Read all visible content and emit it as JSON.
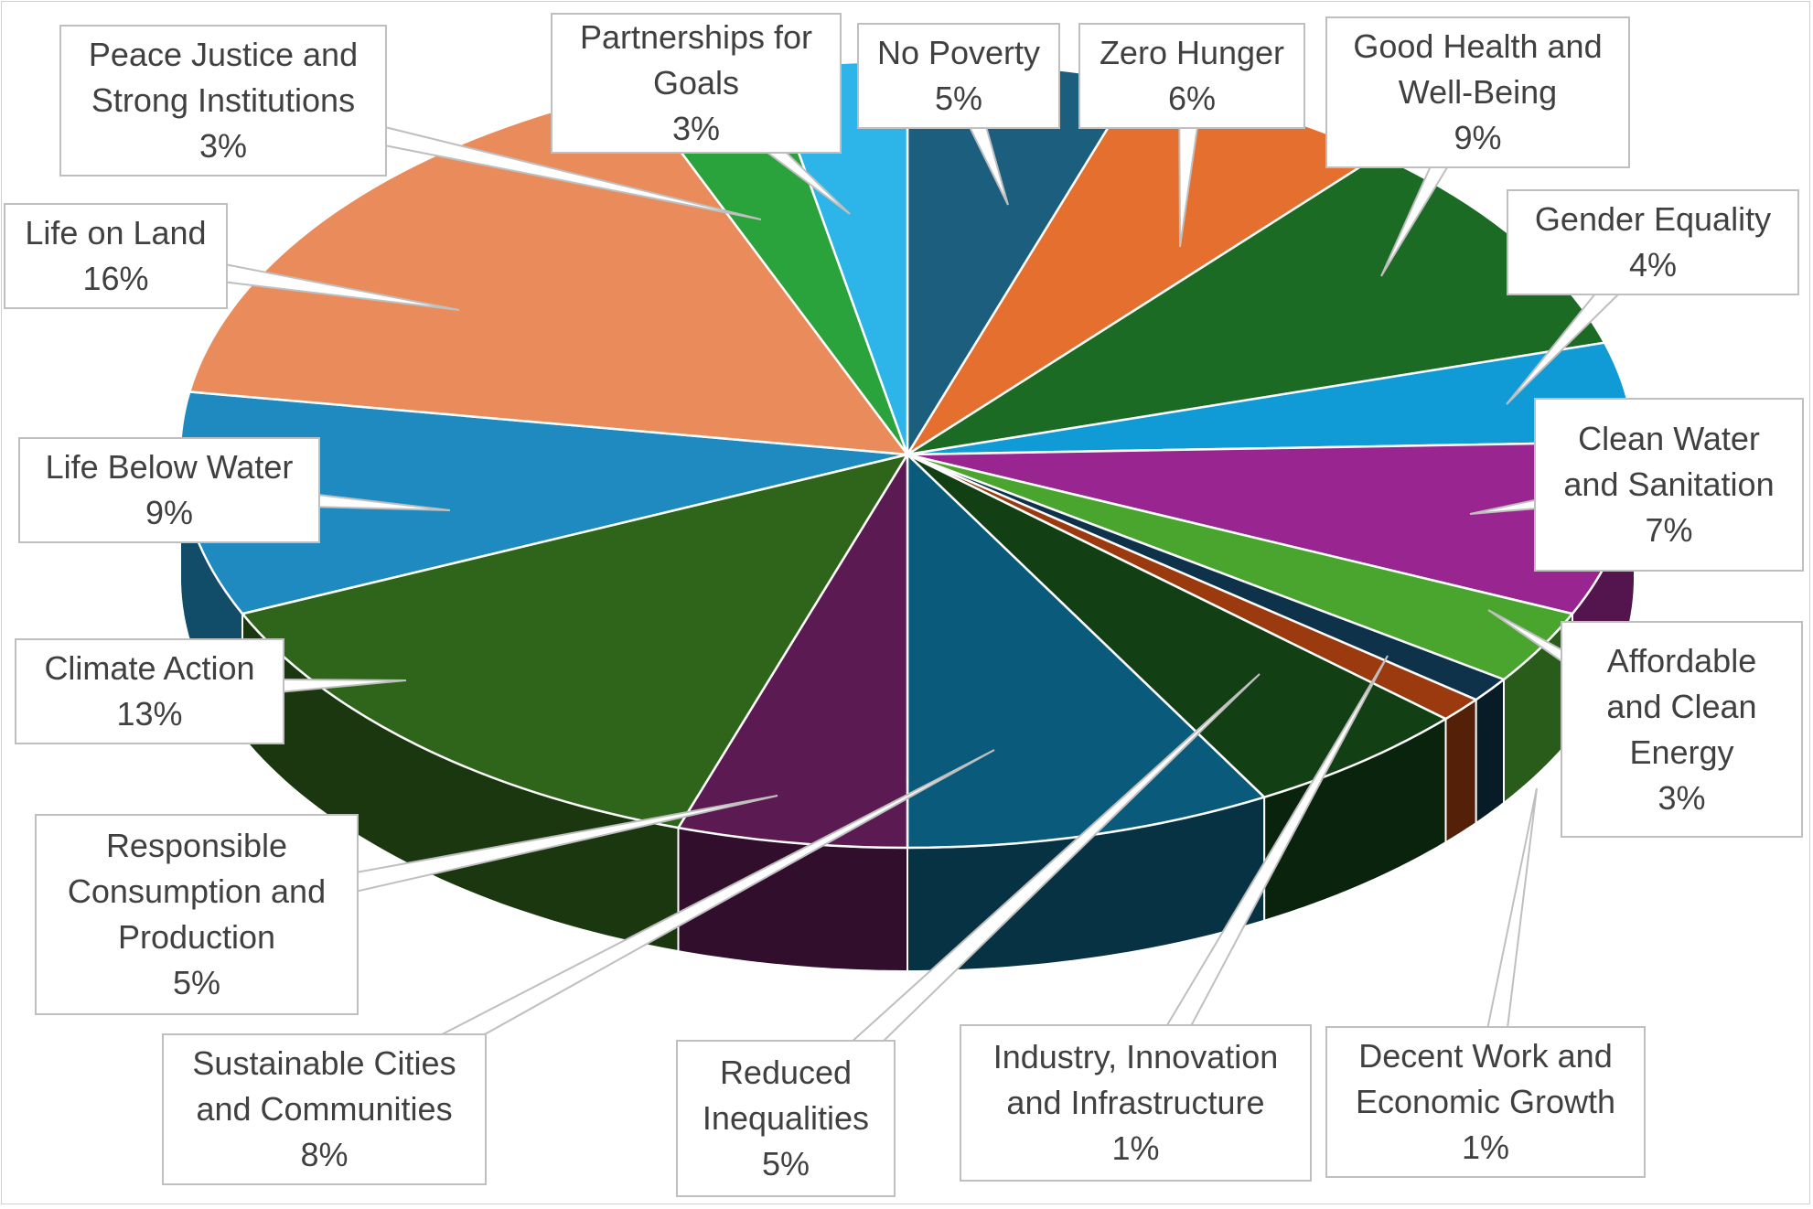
{
  "chart_data": {
    "type": "pie",
    "style": "3d-exploded-perspective",
    "title": "",
    "legend": "none",
    "unit": "%",
    "slices": [
      {
        "name": "No Poverty",
        "label_lines": [
          "No Poverty"
        ],
        "value": 5,
        "label": "5%",
        "color": "#1b5e7e"
      },
      {
        "name": "Zero Hunger",
        "label_lines": [
          "Zero Hunger"
        ],
        "value": 6,
        "label": "6%",
        "color": "#e46f2e"
      },
      {
        "name": "Good Health and Well-Being",
        "label_lines": [
          "Good Health and",
          "Well-Being"
        ],
        "value": 9,
        "label": "9%",
        "color": "#1c6b24"
      },
      {
        "name": "Gender Equality",
        "label_lines": [
          "Gender Equality"
        ],
        "value": 4,
        "label": "4%",
        "color": "#119bd6"
      },
      {
        "name": "Clean Water and Sanitation",
        "label_lines": [
          "Clean Water",
          "and Sanitation"
        ],
        "value": 7,
        "label": "7%",
        "color": "#992690"
      },
      {
        "name": "Affordable and Clean Energy",
        "label_lines": [
          "Affordable",
          "and Clean",
          "Energy"
        ],
        "value": 3,
        "label": "3%",
        "color": "#4aa52f"
      },
      {
        "name": "Decent Work and Economic Growth",
        "label_lines": [
          "Decent Work and",
          "Economic Growth"
        ],
        "value": 1,
        "label": "1%",
        "color": "#0e3249"
      },
      {
        "name": "Industry, Innovation and Infrastructure",
        "label_lines": [
          "Industry, Innovation",
          "and Infrastructure"
        ],
        "value": 1,
        "label": "1%",
        "color": "#9a3a0e"
      },
      {
        "name": "Reduced Inequalities",
        "label_lines": [
          "Reduced",
          "Inequalities"
        ],
        "value": 5,
        "label": "5%",
        "color": "#133f15"
      },
      {
        "name": "Sustainable Cities and Communities",
        "label_lines": [
          "Sustainable Cities",
          "and Communities"
        ],
        "value": 8,
        "label": "8%",
        "color": "#0a5a7c"
      },
      {
        "name": "Responsible Consumption and Production",
        "label_lines": [
          "Responsible",
          "Consumption and",
          "Production"
        ],
        "value": 5,
        "label": "5%",
        "color": "#5b1a52"
      },
      {
        "name": "Climate Action",
        "label_lines": [
          "Climate Action"
        ],
        "value": 13,
        "label": "13%",
        "color": "#2f641b"
      },
      {
        "name": "Life Below Water",
        "label_lines": [
          "Life Below Water"
        ],
        "value": 9,
        "label": "9%",
        "color": "#1f8abf"
      },
      {
        "name": "Life on Land",
        "label_lines": [
          "Life on Land"
        ],
        "value": 16,
        "label": "16%",
        "color": "#e98b5b"
      },
      {
        "name": "Peace Justice and Strong Institutions",
        "label_lines": [
          "Peace Justice and",
          "Strong Institutions"
        ],
        "value": 3,
        "label": "3%",
        "color": "#2aa33c"
      },
      {
        "name": "Partnerships for Goals",
        "label_lines": [
          "Partnerships for",
          "Goals"
        ],
        "value": 3,
        "label": "3%",
        "color": "#2db5ea"
      }
    ]
  }
}
